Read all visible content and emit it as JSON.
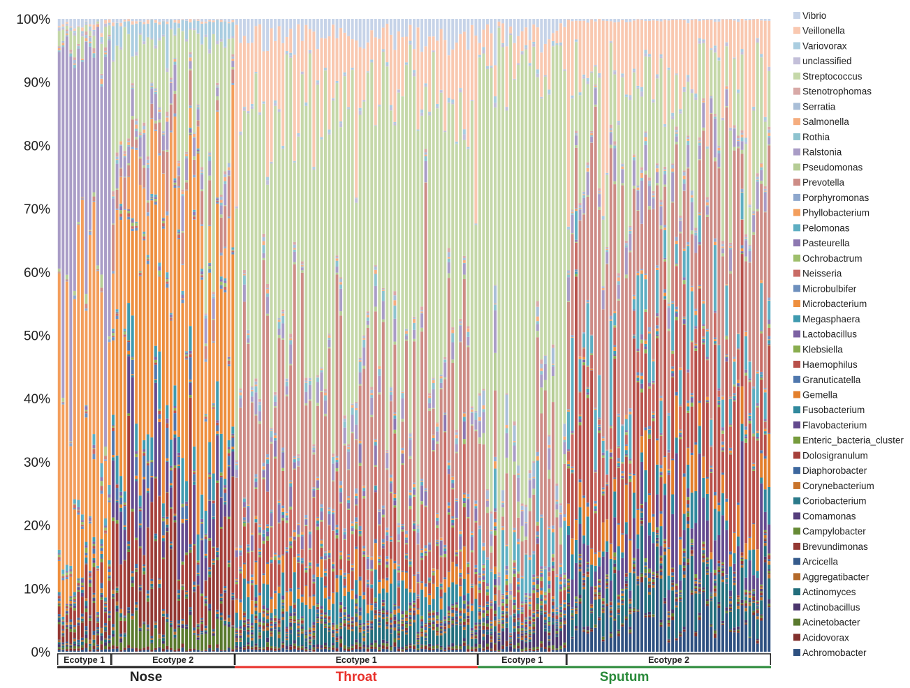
{
  "chart_data": {
    "type": "bar",
    "stacked": true,
    "normalized": true,
    "ylim": [
      0,
      100
    ],
    "y_ticks": [
      "0%",
      "10%",
      "20%",
      "30%",
      "40%",
      "50%",
      "60%",
      "70%",
      "80%",
      "90%",
      "100%"
    ],
    "legend_position": "right",
    "legend": [
      {
        "name": "Vibrio",
        "color": "#c6d3e8"
      },
      {
        "name": "Veillonella",
        "color": "#f9c8b0"
      },
      {
        "name": "Variovorax",
        "color": "#aacde0"
      },
      {
        "name": "unclassified",
        "color": "#c3bfd9"
      },
      {
        "name": "Streptococcus",
        "color": "#c5d8a9"
      },
      {
        "name": "Stenotrophomas",
        "color": "#d8a9a7"
      },
      {
        "name": "Serratia",
        "color": "#a9bed7"
      },
      {
        "name": "Salmonella",
        "color": "#f5ad7f"
      },
      {
        "name": "Rothia",
        "color": "#8ec3cf"
      },
      {
        "name": "Ralstonia",
        "color": "#a99cc6"
      },
      {
        "name": "Pseudomonas",
        "color": "#b5cc95"
      },
      {
        "name": "Prevotella",
        "color": "#cd8c86"
      },
      {
        "name": "Porphyromonas",
        "color": "#8ea7cd"
      },
      {
        "name": "Phyllobacterium",
        "color": "#f39e5c"
      },
      {
        "name": "Pelomonas",
        "color": "#5eaec2"
      },
      {
        "name": "Pasteurella",
        "color": "#8d78b1"
      },
      {
        "name": "Ochrobactrum",
        "color": "#9ebf6c"
      },
      {
        "name": "Neisseria",
        "color": "#c96b65"
      },
      {
        "name": "Microbulbifer",
        "color": "#6d8fbd"
      },
      {
        "name": "Microbacterium",
        "color": "#ee8f3e"
      },
      {
        "name": "Megasphaera",
        "color": "#3f9aaf"
      },
      {
        "name": "Lactobacillus",
        "color": "#7c62a3"
      },
      {
        "name": "Klebsiella",
        "color": "#89ad4f"
      },
      {
        "name": "Haemophilus",
        "color": "#b8504a"
      },
      {
        "name": "Granuticatella",
        "color": "#4f77ad"
      },
      {
        "name": "Gemella",
        "color": "#e37f2c"
      },
      {
        "name": "Fusobacterium",
        "color": "#31899d"
      },
      {
        "name": "Flavobacterium",
        "color": "#634a8e"
      },
      {
        "name": "Enteric_bacteria_cluster",
        "color": "#779c3e"
      },
      {
        "name": "Dolosigranulum",
        "color": "#a6403b"
      },
      {
        "name": "Diaphorobacter",
        "color": "#3d679e"
      },
      {
        "name": "Corynebacterium",
        "color": "#c9742c"
      },
      {
        "name": "Coriobacterium",
        "color": "#2b7a8a"
      },
      {
        "name": "Comamonas",
        "color": "#563f7c"
      },
      {
        "name": "Campylobacter",
        "color": "#668a35"
      },
      {
        "name": "Brevundimonas",
        "color": "#933833"
      },
      {
        "name": "Arcicella",
        "color": "#365b8c"
      },
      {
        "name": "Aggregatibacter",
        "color": "#b3692a"
      },
      {
        "name": "Actinomyces",
        "color": "#226e7c"
      },
      {
        "name": "Actinobacillus",
        "color": "#4b366d"
      },
      {
        "name": "Acinetobacter",
        "color": "#5a7a2e"
      },
      {
        "name": "Acidovorax",
        "color": "#82312d"
      },
      {
        "name": "Achromobacter",
        "color": "#2e5080"
      }
    ],
    "groups": [
      {
        "site": "Nose",
        "site_color": "#222222",
        "ecotypes": [
          {
            "label": "Ecotype 1",
            "bars": 14
          },
          {
            "label": "Ecotype 2",
            "bars": 32
          }
        ]
      },
      {
        "site": "Throat",
        "site_color": "#e8302a",
        "ecotypes": [
          {
            "label": "Ecotype 1",
            "bars": 63
          }
        ]
      },
      {
        "site": "Sputum",
        "site_color": "#2a8a3a",
        "ecotypes": [
          {
            "label": "Ecotype 1",
            "bars": 23
          },
          {
            "label": "Ecotype 2",
            "bars": 53
          }
        ]
      }
    ],
    "series_order_bottom_to_top": [
      "Achromobacter",
      "Acidovorax",
      "Acinetobacter",
      "Actinobacillus",
      "Actinomyces",
      "Aggregatibacter",
      "Arcicella",
      "Brevundimonas",
      "Campylobacter",
      "Comamonas",
      "Coriobacterium",
      "Corynebacterium",
      "Diaphorobacter",
      "Dolosigranulum",
      "Enteric_bacteria_cluster",
      "Flavobacterium",
      "Fusobacterium",
      "Gemella",
      "Granuticatella",
      "Haemophilus",
      "Klebsiella",
      "Lactobacillus",
      "Megasphaera",
      "Microbacterium",
      "Microbulbifer",
      "Neisseria",
      "Ochrobactrum",
      "Pasteurella",
      "Pelomonas",
      "Phyllobacterium",
      "Porphyromonas",
      "Prevotella",
      "Pseudomonas",
      "Ralstonia",
      "Rothia",
      "Salmonella",
      "Serratia",
      "Stenotrophomas",
      "Streptococcus",
      "unclassified",
      "Variovorax",
      "Veillonella",
      "Vibrio"
    ],
    "representative_profiles_percent": {
      "nose_ecotype_1": {
        "Phyllobacterium": 38,
        "Ralstonia": 44,
        "Microbacterium": 8,
        "Dolosigranulum": 3,
        "Brevundimonas": 2,
        "Streptococcus": 2,
        "Pseudomonas": 1,
        "Pelomonas": 1,
        "Vibrio": 1
      },
      "nose_ecotype_2": {
        "Microbacterium": 30,
        "Phyllobacterium": 12,
        "Streptococcus": 14,
        "Dolosigranulum": 6,
        "Flavobacterium": 6,
        "Brevundimonas": 5,
        "Megasphaera": 4,
        "Prevotella": 4,
        "Variovorax": 3,
        "Acinetobacter": 3,
        "Ralstonia": 3,
        "Granuticatella": 2
      },
      "throat_ecotype_1": {
        "Streptococcus": 42,
        "Prevotella": 18,
        "Veillonella": 10,
        "Neisseria": 5,
        "Haemophilus": 4,
        "Fusobacterium": 3,
        "Vibrio": 3,
        "Ralstonia": 2,
        "Gemella": 2,
        "Pasteurella": 2,
        "Actinomyces": 2,
        "Rothia": 1
      },
      "sputum_ecotype_1": {
        "Streptococcus": 60,
        "Prevotella": 8,
        "Pelomonas": 5,
        "Veillonella": 4,
        "Vibrio": 3,
        "Ralstonia": 2,
        "Actinobacillus": 2,
        "Haemophilus": 2,
        "Serratia": 2,
        "Pseudomonas": 2
      },
      "sputum_ecotype_2": {
        "Prevotella": 20,
        "Haemophilus": 14,
        "Streptococcus": 14,
        "Veillonella": 10,
        "Achromobacter": 5,
        "Flavobacterium": 5,
        "Pelomonas": 5,
        "Gemella": 4,
        "Actinomyces": 4,
        "Neisseria": 4,
        "Fusobacterium": 3,
        "Ralstonia": 3
      }
    }
  }
}
